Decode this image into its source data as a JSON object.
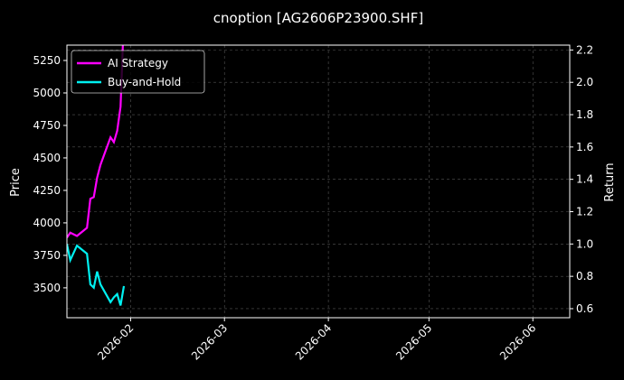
{
  "chart_data": {
    "type": "line",
    "title": "cnoption [AG2606P23900.SHF]",
    "xlabel": "",
    "ylabel": "Price",
    "y2label": "Return",
    "xlim": [
      "2026-01-13",
      "2026-06-12"
    ],
    "ylim": [
      3270,
      5368
    ],
    "y2lim": [
      0.544,
      2.23
    ],
    "x_ticks": [
      "2026-02",
      "2026-03",
      "2026-04",
      "2026-05",
      "2026-06"
    ],
    "x_tick_dates": [
      "2026-02-01",
      "2026-03-01",
      "2026-04-01",
      "2026-05-01",
      "2026-06-01"
    ],
    "y_ticks": [
      3500,
      3750,
      4000,
      4250,
      4500,
      4750,
      5000,
      5250
    ],
    "y2_ticks": [
      0.6,
      0.8,
      1.0,
      1.2,
      1.4,
      1.6,
      1.8,
      2.0,
      2.2
    ],
    "grid": true,
    "legend_position": "top-left",
    "x": [
      "2026-01-13",
      "2026-01-14",
      "2026-01-16",
      "2026-01-19",
      "2026-01-20",
      "2026-01-21",
      "2026-01-22",
      "2026-01-23",
      "2026-01-26",
      "2026-01-27",
      "2026-01-28",
      "2026-01-29",
      "2026-01-30"
    ],
    "series": [
      {
        "name": "AI Strategy",
        "axis": "right",
        "color": "#ff00ff",
        "values": [
          1.04,
          1.07,
          1.05,
          1.1,
          1.28,
          1.29,
          1.41,
          1.49,
          1.66,
          1.63,
          1.7,
          1.85,
          2.4
        ]
      },
      {
        "name": "Buy-and-Hold",
        "axis": "right",
        "color": "#00f0f0",
        "values": [
          1.0,
          0.9,
          0.99,
          0.94,
          0.75,
          0.73,
          0.83,
          0.75,
          0.64,
          0.67,
          0.69,
          0.62,
          0.74
        ]
      }
    ]
  }
}
